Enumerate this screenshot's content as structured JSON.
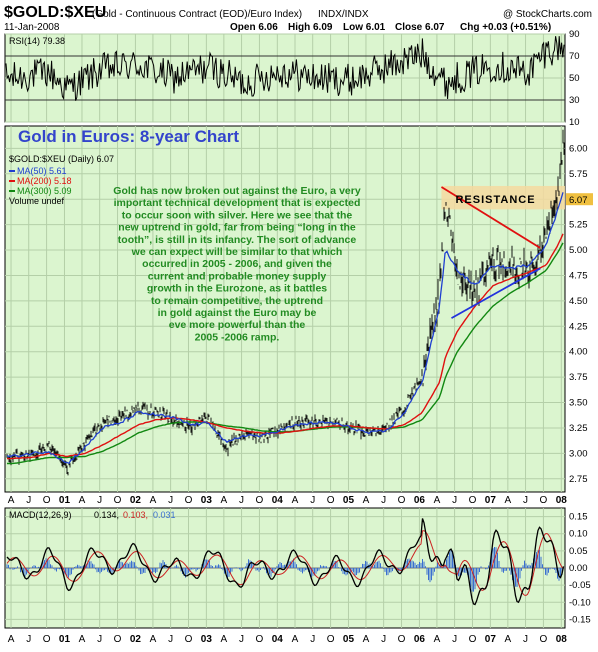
{
  "header": {
    "symbol": "$GOLD:$XEU",
    "description": "(Gold - Continuous Contract (EOD)/Euro Index)",
    "exchange": "INDX/INDX",
    "watermark": "@ StockCharts.com",
    "date": "11-Jan-2008",
    "quote_open": "Open 6.06",
    "quote_high": "High 6.09",
    "quote_low": "Low 6.01",
    "quote_close": "Close 6.07",
    "quote_chg": "Chg +0.03 (+0.51%)"
  },
  "rsi_panel": {
    "label": "RSI(14) 79.38",
    "ticks": [
      "90",
      "70",
      "50",
      "30",
      "10"
    ]
  },
  "price_panel": {
    "chart_title": "Gold in Euros: 8-year Chart",
    "legend_symbol": "$GOLD:$XEU (Daily) 6.07",
    "legend_ma50": "MA(50) 5.61",
    "legend_ma200": "MA(200) 5.18",
    "legend_ma300": "MA(300) 5.09",
    "legend_volume": "Volume undef",
    "resistance_label": "RESISTANCE",
    "price_tag": "6.07",
    "ticks": [
      "6.00",
      "5.75",
      "5.50",
      "5.25",
      "5.00",
      "4.75",
      "4.50",
      "4.25",
      "4.00",
      "3.75",
      "3.50",
      "3.25",
      "3.00",
      "2.75"
    ],
    "commentary": [
      "Gold has now broken out against the Euro, a very",
      "important technical development that is expected",
      "to occur soon with silver. Here we see that the",
      "new uptrend in gold, far from being “long in the",
      "tooth”, is still in its infancy. The sort of advance",
      "we can expect will be similar to that which",
      "occurred in 2005 - 2006, and given the",
      "current and probable money supply",
      "growth in the Eurozone, as it battles",
      "to remain competitive, the uptrend",
      "in gold against the Euro may be",
      "eve more powerful than the",
      "2005 -2006 ramp."
    ]
  },
  "macd_panel": {
    "label": "MACD(12,26,9)",
    "v1": "0.134,",
    "v2": "0.103,",
    "v3": "0.031",
    "ticks": [
      "0.15",
      "0.10",
      "0.05",
      "0.00",
      "-0.05",
      "-0.10",
      "-0.15"
    ]
  },
  "axis_labels": [
    "A",
    "J",
    "O",
    "01",
    "A",
    "J",
    "O",
    "02",
    "A",
    "J",
    "O",
    "03",
    "A",
    "J",
    "O",
    "04",
    "A",
    "J",
    "O",
    "05",
    "A",
    "J",
    "O",
    "06",
    "A",
    "J",
    "O",
    "07",
    "A",
    "J",
    "O",
    "08"
  ],
  "colors": {
    "panel_bg": "#dbf5cf",
    "ma50": "#1f3fd0",
    "ma200": "#e01010",
    "ma300": "#118811",
    "resistance_band": "#f5d9a0",
    "price_tag_bg": "#f0c040",
    "comment_text": "#228b22",
    "title_text": "#3344cc"
  },
  "chart_data": [
    {
      "type": "line",
      "name": "RSI(14)",
      "ylim": [
        10,
        90
      ],
      "x": [
        "2000-04",
        "2000-10",
        "2001-01",
        "2001-07",
        "2002-01",
        "2002-07",
        "2003-01",
        "2003-07",
        "2004-01",
        "2004-07",
        "2005-01",
        "2005-07",
        "2006-01",
        "2006-05",
        "2006-07",
        "2007-01",
        "2007-07",
        "2007-10",
        "2008-01"
      ],
      "values": [
        50,
        55,
        40,
        58,
        62,
        50,
        60,
        45,
        56,
        50,
        48,
        60,
        72,
        45,
        50,
        62,
        55,
        75,
        79.38
      ]
    },
    {
      "type": "line",
      "title": "Gold in Euros: 8-year Chart",
      "ylim": [
        2.75,
        6.1
      ],
      "x": [
        "2000-04",
        "2000-07",
        "2000-10",
        "2001-01",
        "2001-04",
        "2001-07",
        "2001-10",
        "2002-01",
        "2002-04",
        "2002-07",
        "2002-10",
        "2003-01",
        "2003-04",
        "2003-07",
        "2003-10",
        "2004-01",
        "2004-04",
        "2004-07",
        "2004-10",
        "2005-01",
        "2005-04",
        "2005-07",
        "2005-10",
        "2006-01",
        "2006-04",
        "2006-05",
        "2006-07",
        "2006-10",
        "2007-01",
        "2007-04",
        "2007-07",
        "2007-10",
        "2007-12",
        "2008-01"
      ],
      "series": [
        {
          "name": "$GOLD:$XEU (Daily) 6.07",
          "values": [
            2.95,
            3.0,
            3.05,
            2.85,
            3.1,
            3.3,
            3.35,
            3.45,
            3.4,
            3.35,
            3.25,
            3.35,
            3.05,
            3.2,
            3.15,
            3.25,
            3.3,
            3.3,
            3.3,
            3.25,
            3.2,
            3.25,
            3.45,
            3.75,
            4.6,
            5.5,
            4.75,
            4.6,
            4.9,
            4.8,
            4.85,
            5.1,
            5.6,
            6.07
          ]
        },
        {
          "name": "MA(50) 5.61",
          "values": [
            2.97,
            3.0,
            3.02,
            2.9,
            3.05,
            3.25,
            3.3,
            3.4,
            3.38,
            3.35,
            3.28,
            3.3,
            3.1,
            3.18,
            3.17,
            3.23,
            3.28,
            3.3,
            3.3,
            3.25,
            3.2,
            3.22,
            3.4,
            3.7,
            4.45,
            5.0,
            4.8,
            4.65,
            4.85,
            4.82,
            4.85,
            5.05,
            5.4,
            5.61
          ]
        },
        {
          "name": "MA(200) 5.18",
          "values": [
            2.95,
            2.96,
            3.0,
            2.97,
            3.0,
            3.08,
            3.18,
            3.28,
            3.33,
            3.35,
            3.33,
            3.3,
            3.25,
            3.22,
            3.2,
            3.2,
            3.22,
            3.25,
            3.27,
            3.27,
            3.25,
            3.24,
            3.28,
            3.4,
            3.7,
            3.95,
            4.2,
            4.45,
            4.65,
            4.72,
            4.78,
            4.85,
            5.05,
            5.18
          ]
        },
        {
          "name": "MA(300) 5.09",
          "values": [
            2.9,
            2.93,
            2.96,
            2.96,
            2.97,
            3.02,
            3.1,
            3.2,
            3.26,
            3.3,
            3.31,
            3.3,
            3.27,
            3.25,
            3.22,
            3.21,
            3.22,
            3.24,
            3.26,
            3.26,
            3.25,
            3.24,
            3.26,
            3.33,
            3.55,
            3.75,
            4.0,
            4.25,
            4.45,
            4.58,
            4.68,
            4.8,
            4.98,
            5.09
          ]
        }
      ],
      "annotations": [
        "RESISTANCE"
      ]
    },
    {
      "type": "line",
      "name": "MACD(12,26,9)",
      "ylim": [
        -0.175,
        0.175
      ],
      "x": [
        "2000-04",
        "2000-10",
        "2001-01",
        "2001-07",
        "2002-01",
        "2002-07",
        "2003-01",
        "2003-07",
        "2004-01",
        "2004-07",
        "2005-01",
        "2005-07",
        "2006-01",
        "2006-05",
        "2006-07",
        "2007-01",
        "2007-07",
        "2007-10",
        "2008-01"
      ],
      "series": [
        {
          "name": "MACD",
          "values": [
            0.0,
            0.03,
            -0.04,
            0.05,
            0.04,
            -0.03,
            0.04,
            -0.05,
            0.03,
            -0.01,
            -0.02,
            0.02,
            0.09,
            0.16,
            -0.15,
            0.05,
            -0.04,
            0.08,
            0.134
          ]
        },
        {
          "name": "Signal",
          "values": [
            0.0,
            0.02,
            -0.03,
            0.04,
            0.03,
            -0.02,
            0.03,
            -0.04,
            0.02,
            0.0,
            -0.015,
            0.015,
            0.07,
            0.12,
            -0.1,
            0.04,
            -0.03,
            0.06,
            0.103
          ]
        },
        {
          "name": "Histogram",
          "values": [
            0.0,
            0.01,
            -0.01,
            0.01,
            0.01,
            -0.01,
            0.01,
            -0.01,
            0.01,
            -0.01,
            -0.005,
            0.005,
            0.02,
            0.04,
            -0.05,
            0.01,
            -0.01,
            0.02,
            0.031
          ]
        }
      ]
    }
  ]
}
